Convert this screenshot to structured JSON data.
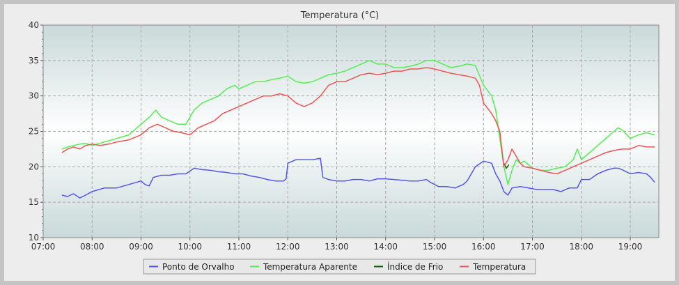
{
  "chart_data": {
    "type": "line",
    "title": "Temperatura (°C)",
    "xlabel": "",
    "ylabel": "",
    "x_ticks": [
      "07:00",
      "08:00",
      "09:00",
      "10:00",
      "11:00",
      "12:00",
      "13:00",
      "14:00",
      "15:00",
      "16:00",
      "17:00",
      "18:00",
      "19:00"
    ],
    "xlim": [
      "07:00",
      "19:35"
    ],
    "ylim": [
      10,
      40
    ],
    "y_ticks": [
      10,
      15,
      20,
      25,
      30,
      35,
      40
    ],
    "grid": true,
    "legend_position": "bottom",
    "series": [
      {
        "name": "Ponto de Orvalho",
        "color": "#5555ee",
        "x": [
          "07:23",
          "07:30",
          "07:37",
          "07:45",
          "07:52",
          "08:00",
          "08:15",
          "08:30",
          "08:45",
          "09:00",
          "09:05",
          "09:10",
          "09:15",
          "09:25",
          "09:35",
          "09:45",
          "09:55",
          "10:05",
          "10:15",
          "10:25",
          "10:35",
          "10:45",
          "10:55",
          "11:05",
          "11:15",
          "11:25",
          "11:35",
          "11:45",
          "11:55",
          "11:58",
          "12:00",
          "12:10",
          "12:20",
          "12:30",
          "12:40",
          "12:43",
          "12:50",
          "13:00",
          "13:10",
          "13:20",
          "13:30",
          "13:40",
          "13:50",
          "14:00",
          "14:10",
          "14:20",
          "14:30",
          "14:40",
          "14:50",
          "14:55",
          "15:05",
          "15:15",
          "15:25",
          "15:35",
          "15:40",
          "15:50",
          "16:00",
          "16:10",
          "16:15",
          "16:20",
          "16:25",
          "16:30",
          "16:35",
          "16:45",
          "16:55",
          "17:05",
          "17:15",
          "17:25",
          "17:35",
          "17:45",
          "17:55",
          "18:00",
          "18:10",
          "18:20",
          "18:30",
          "18:40",
          "18:45",
          "18:50",
          "19:00",
          "19:10",
          "19:20",
          "19:25",
          "19:30"
        ],
        "y": [
          16.0,
          15.8,
          16.2,
          15.6,
          16.0,
          16.5,
          17.0,
          17.0,
          17.5,
          18.0,
          17.5,
          17.3,
          18.5,
          18.8,
          18.8,
          19.0,
          19.0,
          19.8,
          19.6,
          19.5,
          19.3,
          19.2,
          19.0,
          19.0,
          18.7,
          18.5,
          18.2,
          18.0,
          18.0,
          18.3,
          20.5,
          21.0,
          21.0,
          21.0,
          21.2,
          18.5,
          18.2,
          18.0,
          18.0,
          18.2,
          18.2,
          18.0,
          18.3,
          18.3,
          18.2,
          18.1,
          18.0,
          18.0,
          18.2,
          17.8,
          17.2,
          17.2,
          17.0,
          17.5,
          18.0,
          20.0,
          20.8,
          20.5,
          19.0,
          18.0,
          16.5,
          16.0,
          17.0,
          17.2,
          17.0,
          16.8,
          16.8,
          16.8,
          16.5,
          17.0,
          17.0,
          18.2,
          18.2,
          19.0,
          19.5,
          19.8,
          19.8,
          19.6,
          19.0,
          19.2,
          19.0,
          18.5,
          17.8
        ]
      },
      {
        "name": "Temperatura Aparente",
        "color": "#55ee55",
        "x": [
          "07:23",
          "07:30",
          "07:37",
          "07:45",
          "07:52",
          "08:00",
          "08:15",
          "08:30",
          "08:45",
          "09:00",
          "09:10",
          "09:18",
          "09:25",
          "09:35",
          "09:45",
          "09:55",
          "10:05",
          "10:15",
          "10:25",
          "10:35",
          "10:45",
          "10:55",
          "11:00",
          "11:10",
          "11:20",
          "11:30",
          "11:40",
          "11:50",
          "12:00",
          "12:10",
          "12:20",
          "12:30",
          "12:40",
          "12:50",
          "13:00",
          "13:10",
          "13:20",
          "13:30",
          "13:40",
          "13:50",
          "14:00",
          "14:10",
          "14:20",
          "14:30",
          "14:40",
          "14:50",
          "15:00",
          "15:10",
          "15:20",
          "15:30",
          "15:40",
          "15:50",
          "16:00",
          "16:10",
          "16:15",
          "16:20",
          "16:25",
          "16:30",
          "16:35",
          "16:40",
          "16:45",
          "16:50",
          "17:00",
          "17:10",
          "17:20",
          "17:30",
          "17:40",
          "17:50",
          "17:55",
          "18:00",
          "18:10",
          "18:20",
          "18:30",
          "18:40",
          "18:45",
          "18:50",
          "19:00",
          "19:10",
          "19:20",
          "19:30"
        ],
        "y": [
          22.5,
          22.8,
          23.0,
          23.2,
          23.3,
          23.0,
          23.5,
          24.0,
          24.5,
          26.0,
          27.0,
          28.0,
          27.0,
          26.5,
          26.0,
          26.0,
          28.0,
          29.0,
          29.5,
          30.0,
          31.0,
          31.5,
          31.0,
          31.5,
          32.0,
          32.0,
          32.3,
          32.5,
          32.8,
          32.0,
          31.8,
          32.0,
          32.5,
          33.0,
          33.2,
          33.5,
          34.0,
          34.5,
          35.0,
          34.5,
          34.5,
          34.0,
          34.0,
          34.2,
          34.5,
          35.0,
          35.0,
          34.5,
          34.0,
          34.2,
          34.5,
          34.3,
          31.5,
          30.0,
          28.0,
          24.0,
          20.0,
          17.5,
          19.5,
          21.0,
          20.5,
          20.8,
          19.8,
          19.5,
          19.5,
          19.8,
          20.0,
          21.0,
          22.5,
          21.0,
          22.0,
          23.0,
          24.0,
          25.0,
          25.5,
          25.2,
          24.0,
          24.5,
          24.8,
          24.5
        ]
      },
      {
        "name": "Índice de Frio",
        "color": "#006600",
        "x": [
          "16:25",
          "16:28",
          "16:31"
        ],
        "y": [
          20.5,
          19.8,
          20.3
        ]
      },
      {
        "name": "Temperatura",
        "color": "#ee5555",
        "x": [
          "07:23",
          "07:30",
          "07:37",
          "07:45",
          "07:52",
          "08:00",
          "08:10",
          "08:20",
          "08:30",
          "08:45",
          "09:00",
          "09:10",
          "09:20",
          "09:30",
          "09:40",
          "09:50",
          "10:00",
          "10:10",
          "10:20",
          "10:30",
          "10:40",
          "10:50",
          "11:00",
          "11:10",
          "11:20",
          "11:30",
          "11:40",
          "11:50",
          "12:00",
          "12:10",
          "12:20",
          "12:30",
          "12:40",
          "12:50",
          "13:00",
          "13:10",
          "13:20",
          "13:30",
          "13:40",
          "13:50",
          "14:00",
          "14:10",
          "14:20",
          "14:30",
          "14:40",
          "14:50",
          "15:00",
          "15:10",
          "15:20",
          "15:30",
          "15:40",
          "15:50",
          "15:55",
          "16:00",
          "16:10",
          "16:15",
          "16:20",
          "16:25",
          "16:30",
          "16:35",
          "16:40",
          "16:45",
          "16:50",
          "17:00",
          "17:10",
          "17:20",
          "17:30",
          "17:40",
          "17:50",
          "18:00",
          "18:10",
          "18:20",
          "18:30",
          "18:40",
          "18:50",
          "19:00",
          "19:10",
          "19:20",
          "19:30"
        ],
        "y": [
          22.0,
          22.5,
          22.8,
          22.5,
          23.0,
          23.2,
          23.0,
          23.2,
          23.5,
          23.8,
          24.5,
          25.5,
          26.0,
          25.5,
          25.0,
          24.8,
          24.5,
          25.5,
          26.0,
          26.5,
          27.5,
          28.0,
          28.5,
          29.0,
          29.5,
          30.0,
          30.0,
          30.3,
          30.0,
          29.0,
          28.5,
          29.0,
          30.0,
          31.5,
          32.0,
          32.0,
          32.5,
          33.0,
          33.2,
          33.0,
          33.2,
          33.5,
          33.5,
          33.8,
          33.8,
          34.0,
          33.8,
          33.5,
          33.2,
          33.0,
          32.8,
          32.5,
          31.5,
          29.0,
          27.5,
          26.5,
          25.0,
          20.0,
          21.0,
          22.5,
          21.5,
          20.5,
          20.0,
          19.8,
          19.5,
          19.2,
          19.0,
          19.5,
          20.0,
          20.5,
          21.0,
          21.5,
          22.0,
          22.3,
          22.5,
          22.5,
          23.0,
          22.8,
          22.8
        ]
      }
    ]
  }
}
